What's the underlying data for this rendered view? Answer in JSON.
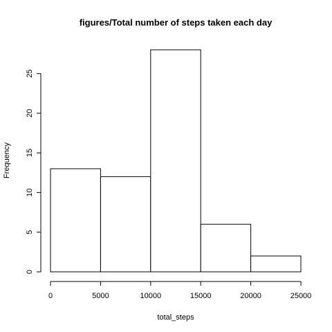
{
  "chart_data": {
    "type": "bar",
    "title": "figures/Total number of steps taken each day",
    "xlabel": "total_steps",
    "ylabel": "Frequency",
    "bins": [
      {
        "x0": 0,
        "x1": 5000,
        "count": 13
      },
      {
        "x0": 5000,
        "x1": 10000,
        "count": 12
      },
      {
        "x0": 10000,
        "x1": 15000,
        "count": 28
      },
      {
        "x0": 15000,
        "x1": 20000,
        "count": 6
      },
      {
        "x0": 20000,
        "x1": 25000,
        "count": 2
      }
    ],
    "xlim": [
      0,
      25000
    ],
    "ylim": [
      0,
      28
    ],
    "xticks": [
      0,
      5000,
      10000,
      15000,
      20000,
      25000
    ],
    "yticks": [
      0,
      5,
      10,
      15,
      20,
      25
    ],
    "grid": false,
    "bar_fill": "#ffffff",
    "bar_stroke": "#000000"
  }
}
